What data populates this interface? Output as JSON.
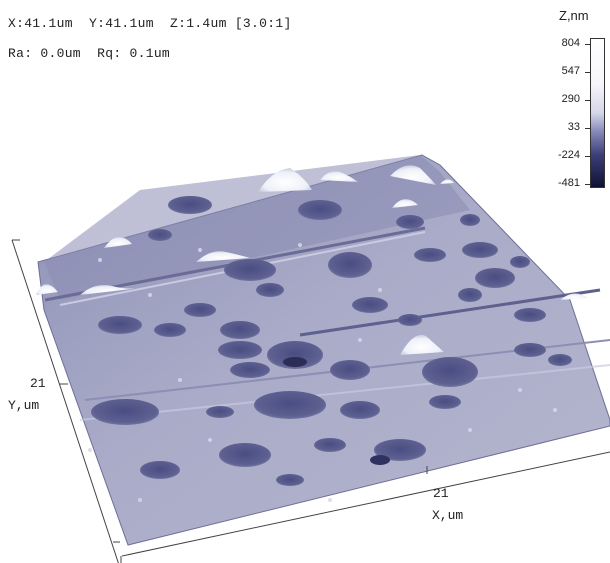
{
  "header": {
    "line1": "X:41.1um  Y:41.1um  Z:1.4um [3.0:1]",
    "line2": "Ra: 0.0um  Rq: 0.1um"
  },
  "colorbar": {
    "title": "Z,nm",
    "ticks": [
      "804",
      "547",
      "290",
      "33",
      "-224",
      "-481"
    ]
  },
  "axes": {
    "y_tick": "21",
    "y_label": "Y,um",
    "x_tick": "21",
    "x_label": "X,um"
  }
}
